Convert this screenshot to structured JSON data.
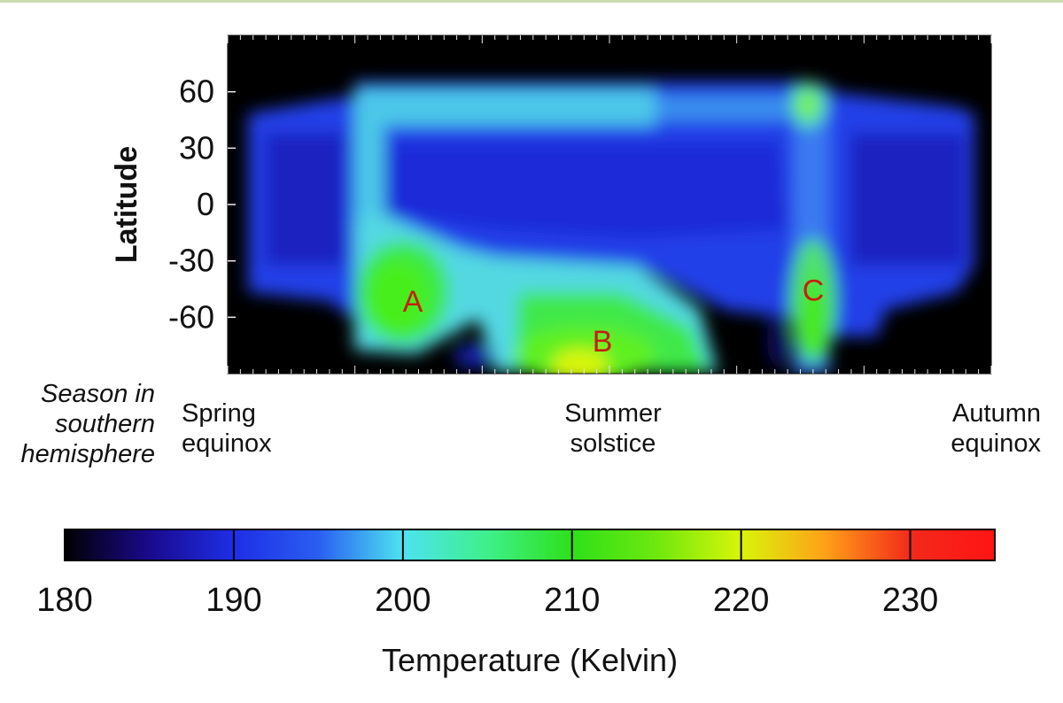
{
  "chart_data": {
    "type": "heatmap",
    "ylabel": "Latitude",
    "y_ticks": [
      60,
      30,
      0,
      -30,
      -60
    ],
    "ylim": [
      -90,
      90
    ],
    "x_category_caption": "Season in southern hemisphere",
    "x_categories": [
      "Spring equinox",
      "Summer solstice",
      "Autumn equinox"
    ],
    "x_season_positions": [
      0,
      0.5,
      1
    ],
    "regions": [
      {
        "label": "A",
        "season_pos": 0.22,
        "latitude": -51
      },
      {
        "label": "B",
        "season_pos": 0.49,
        "latitude": -72
      },
      {
        "label": "C",
        "season_pos": 0.79,
        "latitude": -45
      }
    ],
    "colorbar": {
      "label": "Temperature (Kelvin)",
      "min": 180,
      "max": 235,
      "ticks": [
        180,
        190,
        200,
        210,
        220,
        230
      ],
      "colors": [
        {
          "value": 180,
          "color": "#000000"
        },
        {
          "value": 185,
          "color": "#1a0a8c"
        },
        {
          "value": 190,
          "color": "#1e2ee6"
        },
        {
          "value": 195,
          "color": "#2a5ef2"
        },
        {
          "value": 200,
          "color": "#4de3f0"
        },
        {
          "value": 205,
          "color": "#3ef08a"
        },
        {
          "value": 210,
          "color": "#2ee01a"
        },
        {
          "value": 215,
          "color": "#6ee80e"
        },
        {
          "value": 220,
          "color": "#d8f50a"
        },
        {
          "value": 225,
          "color": "#ffa018"
        },
        {
          "value": 230,
          "color": "#f22a1a"
        },
        {
          "value": 235,
          "color": "#ff1414"
        }
      ]
    }
  }
}
